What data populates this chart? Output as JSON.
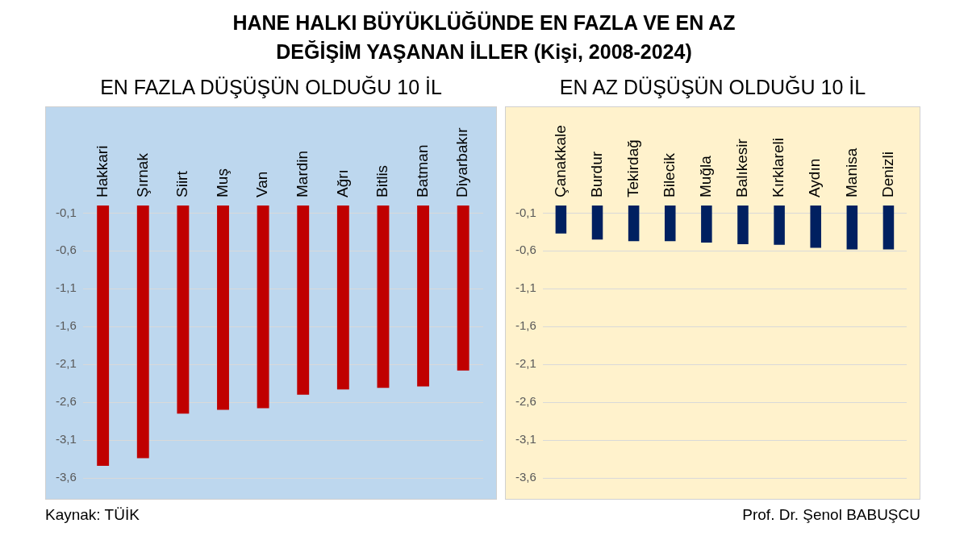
{
  "chart_data": [
    {
      "type": "bar",
      "title": "HANE HALKI BÜYÜKLÜĞÜNDE EN FAZLA VE EN AZ DEĞİŞİM YAŞANAN İLLER (Kişi, 2008-2024)",
      "subtitle": "EN FAZLA DÜŞÜŞÜN OLDUĞU 10 İL",
      "categories": [
        "Hakkari",
        "Şırnak",
        "Siirt",
        "Muş",
        "Van",
        "Mardin",
        "Ağrı",
        "Bitlis",
        "Batman",
        "Diyarbakır"
      ],
      "values": [
        -3.44,
        -3.34,
        -2.75,
        -2.7,
        -2.68,
        -2.5,
        -2.43,
        -2.41,
        -2.39,
        -2.18
      ],
      "color": "#c00000",
      "ylim": [
        -3.6,
        0
      ],
      "yticks": [
        {
          "value": -0.1,
          "label": "-0,1"
        },
        {
          "value": -0.6,
          "label": "-0,6"
        },
        {
          "value": -1.1,
          "label": "-1,1"
        },
        {
          "value": -1.6,
          "label": "-1,6"
        },
        {
          "value": -2.1,
          "label": "-2,1"
        },
        {
          "value": -2.6,
          "label": "-2,6"
        },
        {
          "value": -3.1,
          "label": "-3,1"
        },
        {
          "value": -3.6,
          "label": "-3,6"
        }
      ],
      "grid": "y",
      "legend": false,
      "annotations": [
        "Kaynak: TÜİK"
      ]
    },
    {
      "type": "bar",
      "subtitle": "EN AZ DÜŞÜŞÜN OLDUĞU 10 İL",
      "categories": [
        "Çanakkale",
        "Burdur",
        "Tekirdağ",
        "Bilecik",
        "Muğla",
        "Balıkesir",
        "Kırklareli",
        "Aydın",
        "Manisa",
        "Denizli"
      ],
      "values": [
        -0.37,
        -0.45,
        -0.47,
        -0.47,
        -0.49,
        -0.51,
        -0.52,
        -0.56,
        -0.58,
        -0.58
      ],
      "color": "#002060",
      "ylim": [
        -3.6,
        0
      ],
      "yticks": [
        {
          "value": -0.1,
          "label": "-0,1"
        },
        {
          "value": -0.6,
          "label": "-0,6"
        },
        {
          "value": -1.1,
          "label": "-1,1"
        },
        {
          "value": -1.6,
          "label": "-1,6"
        },
        {
          "value": -2.1,
          "label": "-2,1"
        },
        {
          "value": -2.6,
          "label": "-2,6"
        },
        {
          "value": -3.1,
          "label": "-3,1"
        },
        {
          "value": -3.6,
          "label": "-3,6"
        }
      ],
      "grid": "y",
      "legend": false,
      "annotations": [
        "Prof. Dr. Şenol BABUŞCU"
      ]
    }
  ]
}
